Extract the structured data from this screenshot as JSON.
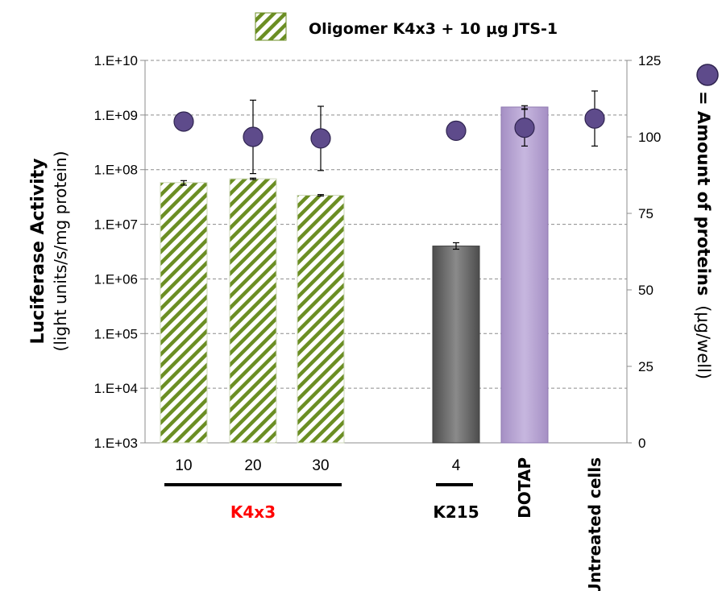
{
  "chart_data": {
    "type": "bar",
    "legend": {
      "bar_label": "Oligomer K4x3 + 10 μg JTS-1",
      "marker_label": "= Amount of proteins",
      "marker_unit": "(μg/well)"
    },
    "y_left": {
      "label": "Luciferase Activity",
      "sublabel": "(light units/s/mg protein)",
      "scale": "log",
      "range": [
        1000,
        10000000000
      ],
      "ticks": [
        "1.E+03",
        "1.E+04",
        "1.E+05",
        "1.E+06",
        "1.E+07",
        "1.E+08",
        "1.E+09",
        "1.E+10"
      ]
    },
    "y_right": {
      "range": [
        0,
        125
      ],
      "ticks": [
        "0",
        "25",
        "50",
        "75",
        "100",
        "125"
      ]
    },
    "grid": "horizontal dashed",
    "categories": [
      {
        "label": "10",
        "value": 58000000,
        "err_low": 52000000,
        "err_high": 63000000,
        "protein": 105,
        "protein_err_low": 105,
        "protein_err_high": 105,
        "fill": "striped-green",
        "group": "K4x3"
      },
      {
        "label": "20",
        "value": 68000000,
        "err_low": 66000000,
        "err_high": 70000000,
        "protein": 100,
        "protein_err_low": 88,
        "protein_err_high": 112,
        "fill": "striped-green",
        "group": "K4x3"
      },
      {
        "label": "30",
        "value": 34000000,
        "err_low": 33000000,
        "err_high": 35000000,
        "protein": 99.5,
        "protein_err_low": 89,
        "protein_err_high": 110,
        "fill": "striped-green",
        "group": "K4x3"
      },
      {
        "label": "4",
        "value": 4000000,
        "err_low": 3500000,
        "err_high": 4600000,
        "protein": 102,
        "protein_err_low": 102,
        "protein_err_high": 102,
        "fill": "gray",
        "group": "K215"
      },
      {
        "label": "DOTAP",
        "value": 1400000000,
        "err_low": 1300000000,
        "err_high": 1480000000,
        "protein": 103,
        "protein_err_low": 97,
        "protein_err_high": 109,
        "fill": "purple",
        "group": ""
      },
      {
        "label": "Untreated cells",
        "value": null,
        "protein": 106,
        "protein_err_low": 97,
        "protein_err_high": 115,
        "fill": "none",
        "group": ""
      }
    ],
    "groups": [
      {
        "label": "K4x3",
        "color": "#ff0000"
      },
      {
        "label": "K215",
        "color": "#000000"
      }
    ],
    "colors": {
      "stripe": "#6b8e23",
      "gray_bar": "#6a6a6a",
      "purple_bar": "#b9a5d3",
      "marker": "#5e4b8b"
    }
  }
}
